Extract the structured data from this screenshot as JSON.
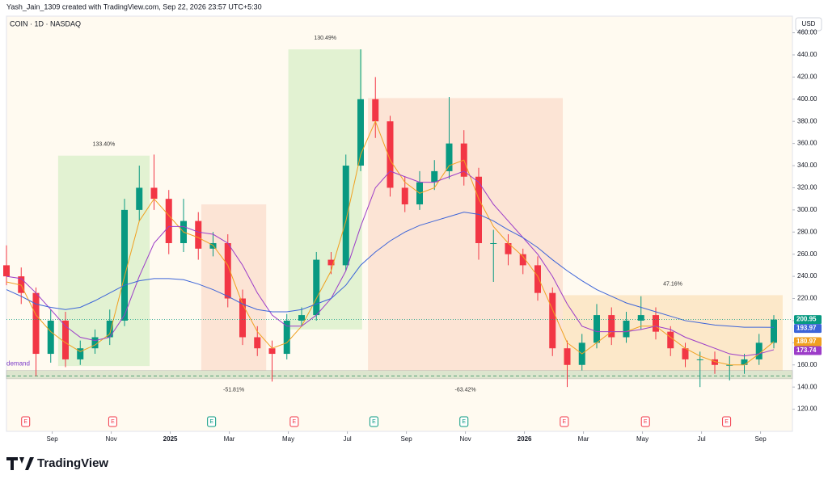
{
  "header": {
    "credit": "Yash_Jain_1309 created with TradingView.com, Sep 22, 2026 23:57 UTC+5:30",
    "symbol": "COIN · 1D · NASDAQ",
    "currency": "USD",
    "brand": "TradingView"
  },
  "chart_data": {
    "type": "candlestick",
    "categories": [
      null,
      null,
      null,
      null,
      null,
      null,
      null,
      null,
      null,
      null,
      null,
      null,
      null,
      null,
      null,
      null,
      null,
      null,
      null,
      null,
      null,
      null,
      null,
      null,
      null,
      null,
      null,
      null,
      null,
      null,
      null,
      null,
      null,
      null,
      null,
      null,
      null,
      null,
      null,
      null,
      null,
      null,
      null,
      null,
      null,
      null,
      null,
      null,
      null,
      null,
      null,
      null,
      null
    ],
    "open": [
      250,
      240,
      225,
      170,
      200,
      165,
      175,
      185,
      200,
      300,
      320,
      310,
      270,
      290,
      265,
      270,
      220,
      185,
      175,
      170,
      200,
      205,
      255,
      250,
      340,
      400,
      380,
      320,
      305,
      325,
      335,
      360,
      330,
      270,
      270,
      260,
      250,
      225,
      175,
      160,
      180,
      205,
      185,
      200,
      205,
      190,
      175,
      165,
      165,
      160,
      160,
      165,
      180
    ],
    "high": [
      268,
      248,
      230,
      210,
      208,
      182,
      192,
      210,
      310,
      340,
      350,
      318,
      310,
      298,
      280,
      278,
      228,
      195,
      182,
      206,
      212,
      262,
      262,
      350,
      445,
      420,
      385,
      330,
      335,
      345,
      402,
      372,
      338,
      282,
      278,
      265,
      258,
      230,
      182,
      188,
      215,
      212,
      208,
      222,
      212,
      195,
      180,
      172,
      172,
      168,
      170,
      188,
      205
    ],
    "low": [
      232,
      215,
      150,
      162,
      158,
      160,
      170,
      178,
      195,
      290,
      300,
      260,
      262,
      255,
      258,
      212,
      178,
      168,
      145,
      165,
      195,
      200,
      242,
      245,
      335,
      365,
      312,
      298,
      300,
      318,
      328,
      322,
      255,
      235,
      250,
      242,
      218,
      168,
      140,
      155,
      175,
      178,
      180,
      192,
      183,
      168,
      158,
      140,
      152,
      146,
      152,
      160,
      175
    ],
    "close": [
      240,
      225,
      170,
      200,
      165,
      175,
      185,
      200,
      300,
      320,
      310,
      270,
      290,
      265,
      270,
      220,
      185,
      175,
      170,
      200,
      205,
      255,
      250,
      340,
      400,
      380,
      320,
      305,
      325,
      335,
      360,
      330,
      270,
      270,
      260,
      250,
      225,
      175,
      160,
      180,
      205,
      185,
      200,
      205,
      190,
      175,
      165,
      165,
      160,
      160,
      165,
      180,
      200.95
    ],
    "up_color": "#089981",
    "down_color": "#f23645",
    "series": [
      {
        "color": "#f0a020",
        "values": [
          235,
          232,
          205,
          190,
          180,
          172,
          178,
          188,
          240,
          290,
          310,
          295,
          280,
          275,
          268,
          250,
          215,
          190,
          175,
          180,
          195,
          220,
          245,
          290,
          350,
          380,
          345,
          325,
          315,
          320,
          340,
          345,
          310,
          285,
          270,
          258,
          240,
          210,
          180,
          170,
          180,
          190,
          190,
          195,
          195,
          185,
          175,
          168,
          163,
          160,
          160,
          170,
          180.97
        ]
      },
      {
        "color": "#9c3cc8",
        "values": [
          240,
          238,
          225,
          210,
          195,
          185,
          182,
          185,
          205,
          240,
          270,
          285,
          285,
          280,
          278,
          270,
          250,
          225,
          205,
          195,
          195,
          205,
          220,
          245,
          285,
          320,
          335,
          330,
          325,
          325,
          330,
          335,
          325,
          305,
          290,
          275,
          260,
          240,
          215,
          195,
          190,
          190,
          190,
          192,
          195,
          192,
          185,
          180,
          175,
          170,
          168,
          170,
          173.74
        ]
      },
      {
        "color": "#3c64d8",
        "values": [
          228,
          222,
          215,
          212,
          210,
          212,
          218,
          225,
          232,
          236,
          238,
          238,
          237,
          233,
          228,
          222,
          215,
          210,
          208,
          208,
          210,
          215,
          220,
          232,
          250,
          262,
          272,
          280,
          286,
          290,
          294,
          298,
          296,
          290,
          282,
          275,
          266,
          255,
          245,
          236,
          228,
          222,
          216,
          212,
          208,
          204,
          200,
          198,
          196,
          195,
          194,
          194,
          193.97
        ]
      }
    ],
    "ylim": [
      100,
      475
    ],
    "yticks": [
      {
        "value": 120,
        "label": "120.00"
      },
      {
        "value": 140,
        "label": "140.00"
      },
      {
        "value": 160,
        "label": "160.00"
      },
      {
        "value": 180,
        "label": "180.00"
      },
      {
        "value": 200,
        "label": "200.00"
      },
      {
        "value": 220,
        "label": "220.00"
      },
      {
        "value": 240,
        "label": "240.00"
      },
      {
        "value": 260,
        "label": "260.00"
      },
      {
        "value": 280,
        "label": "280.00"
      },
      {
        "value": 300,
        "label": "300.00"
      },
      {
        "value": 320,
        "label": "320.00"
      },
      {
        "value": 340,
        "label": "340.00"
      },
      {
        "value": 360,
        "label": "360.00"
      },
      {
        "value": 380,
        "label": "380.00"
      },
      {
        "value": 400,
        "label": "400.00"
      },
      {
        "value": 420,
        "label": "420.00"
      },
      {
        "value": 440,
        "label": "440.00"
      },
      {
        "value": 460,
        "label": "460.00"
      }
    ],
    "xticks": [
      {
        "value": 3.1,
        "label": "Sep"
      },
      {
        "value": 7.1,
        "label": "Nov"
      },
      {
        "value": 11.1,
        "label": "2025"
      },
      {
        "value": 15.1,
        "label": "Mar"
      },
      {
        "value": 19.1,
        "label": "May"
      },
      {
        "value": 23.1,
        "label": "Jul"
      },
      {
        "value": 27.1,
        "label": "Sep"
      },
      {
        "value": 31.1,
        "label": "Nov"
      },
      {
        "value": 35.1,
        "label": "2026"
      },
      {
        "value": 39.1,
        "label": "Mar"
      },
      {
        "value": 43.1,
        "label": "May"
      },
      {
        "value": 47.1,
        "label": "Jul"
      },
      {
        "value": 51.1,
        "label": "Sep"
      }
    ],
    "zones": [
      {
        "from": 3.5,
        "to": 9.7,
        "low": 159,
        "high": 349,
        "color": "#d8efc8",
        "label": "133.40%",
        "label_side": "top"
      },
      {
        "from": 13.2,
        "to": 17.6,
        "low": 155,
        "high": 305,
        "color": "#fbdccc",
        "label": "-51.81%",
        "label_side": "bottom"
      },
      {
        "from": 19.1,
        "to": 24.1,
        "low": 192,
        "high": 445,
        "color": "#d8efc8",
        "label": "130.49%",
        "label_side": "top"
      },
      {
        "from": 24.5,
        "to": 37.7,
        "low": 155,
        "high": 401,
        "color": "#fbdccc",
        "label": "-63.42%",
        "label_side": "bottom"
      },
      {
        "from": 37.7,
        "to": 52.6,
        "low": 155,
        "high": 223,
        "color": "#fbe2bc",
        "label": "47.16%",
        "label_side": "top"
      }
    ],
    "demand": {
      "label": "demand",
      "low": 147.5,
      "high": 155,
      "line": 150
    },
    "earnings": [
      {
        "at": 1.3,
        "label": "E",
        "color": "#f23645"
      },
      {
        "at": 7.2,
        "label": "E",
        "color": "#f23645"
      },
      {
        "at": 13.9,
        "label": "E",
        "color": "#089981"
      },
      {
        "at": 19.5,
        "label": "E",
        "color": "#f23645"
      },
      {
        "at": 24.9,
        "label": "E",
        "color": "#089981"
      },
      {
        "at": 31.0,
        "label": "E",
        "color": "#089981"
      },
      {
        "at": 37.8,
        "label": "E",
        "color": "#f23645"
      },
      {
        "at": 43.3,
        "label": "E",
        "color": "#f23645"
      },
      {
        "at": 48.8,
        "label": "E",
        "color": "#f23645"
      }
    ],
    "last_color": "#089981"
  }
}
